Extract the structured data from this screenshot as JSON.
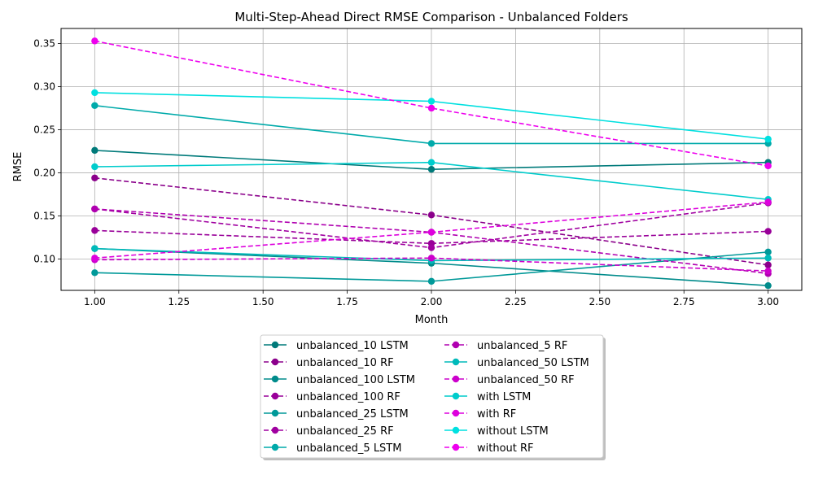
{
  "chart_data": {
    "type": "line",
    "title": "Multi-Step-Ahead Direct RMSE Comparison - Unbalanced Folders",
    "xlabel": "Month",
    "ylabel": "RMSE",
    "xlim": [
      0.9,
      3.1
    ],
    "ylim": [
      0.0635,
      0.3675
    ],
    "xticks": [
      1.0,
      1.25,
      1.5,
      1.75,
      2.0,
      2.25,
      2.5,
      2.75,
      3.0
    ],
    "xtick_labels": [
      "1.00",
      "1.25",
      "1.50",
      "1.75",
      "2.00",
      "2.25",
      "2.50",
      "2.75",
      "3.00"
    ],
    "yticks": [
      0.1,
      0.15,
      0.2,
      0.25,
      0.3,
      0.35
    ],
    "ytick_labels": [
      "0.10",
      "0.15",
      "0.20",
      "0.25",
      "0.30",
      "0.35"
    ],
    "grid": true,
    "legend_position": "below plot, two columns",
    "x": [
      1,
      2,
      3
    ],
    "series": [
      {
        "name": "unbalanced_10 LSTM",
        "values": [
          0.226,
          0.204,
          0.212
        ],
        "color": "#007a7a",
        "dash": false
      },
      {
        "name": "unbalanced_10 RF",
        "values": [
          0.194,
          0.151,
          0.093
        ],
        "color": "#8b008b",
        "dash": true
      },
      {
        "name": "unbalanced_100 LSTM",
        "values": [
          0.112,
          0.095,
          0.069
        ],
        "color": "#008b8b",
        "dash": false
      },
      {
        "name": "unbalanced_100 RF",
        "values": [
          0.133,
          0.118,
          0.132
        ],
        "color": "#990099",
        "dash": true
      },
      {
        "name": "unbalanced_25 LSTM",
        "values": [
          0.084,
          0.074,
          0.108
        ],
        "color": "#009999",
        "dash": false
      },
      {
        "name": "unbalanced_25 RF",
        "values": [
          0.158,
          0.113,
          0.165
        ],
        "color": "#a000a0",
        "dash": true
      },
      {
        "name": "unbalanced_5 LSTM",
        "values": [
          0.278,
          0.234,
          0.234
        ],
        "color": "#00aaaa",
        "dash": false
      },
      {
        "name": "unbalanced_5 RF",
        "values": [
          0.158,
          0.131,
          0.083
        ],
        "color": "#b000b0",
        "dash": true
      },
      {
        "name": "unbalanced_50 LSTM",
        "values": [
          0.112,
          0.098,
          0.101
        ],
        "color": "#00baba",
        "dash": false
      },
      {
        "name": "unbalanced_50 RF",
        "values": [
          0.099,
          0.101,
          0.086
        ],
        "color": "#cc00cc",
        "dash": true
      },
      {
        "name": "with LSTM",
        "values": [
          0.207,
          0.212,
          0.169
        ],
        "color": "#00cccc",
        "dash": false
      },
      {
        "name": "with RF",
        "values": [
          0.101,
          0.131,
          0.166
        ],
        "color": "#dd00dd",
        "dash": true
      },
      {
        "name": "without LSTM",
        "values": [
          0.293,
          0.283,
          0.239
        ],
        "color": "#00e0e0",
        "dash": false
      },
      {
        "name": "without RF",
        "values": [
          0.353,
          0.275,
          0.208
        ],
        "color": "#ee00ee",
        "dash": true
      }
    ]
  }
}
